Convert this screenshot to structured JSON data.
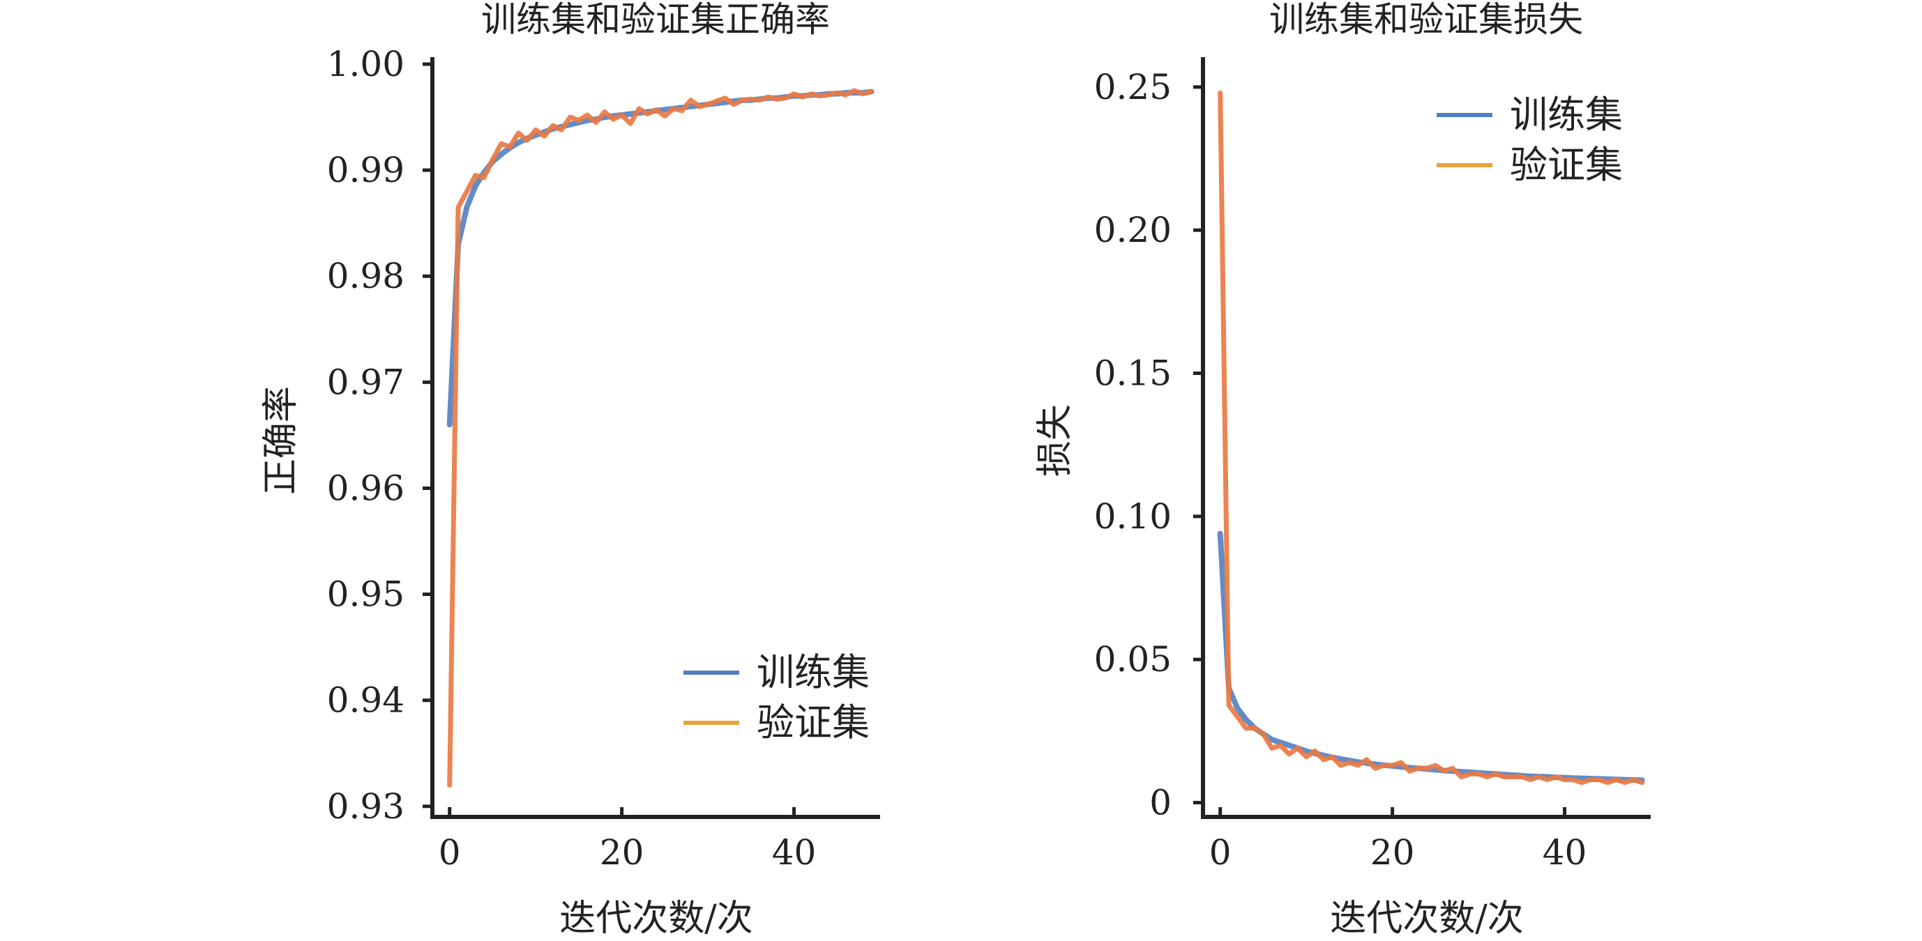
{
  "chart_data": [
    {
      "type": "line",
      "title": "训练集和验证集正确率",
      "xlabel": "迭代次数/次",
      "ylabel": "正确率",
      "xlim": [
        -2,
        50
      ],
      "ylim": [
        0.929,
        1.0
      ],
      "xticks": [
        0,
        20,
        40
      ],
      "xtick_labels": [
        "0",
        "20",
        "40"
      ],
      "yticks": [
        0.93,
        0.94,
        0.95,
        0.96,
        0.97,
        0.98,
        0.99,
        1.0
      ],
      "ytick_labels": [
        "0.93",
        "0.94",
        "0.95",
        "0.96",
        "0.97",
        "0.98",
        "0.99",
        "1.00"
      ],
      "grid": false,
      "legend_position": "bottom-right",
      "x": [
        0,
        1,
        2,
        3,
        4,
        5,
        6,
        7,
        8,
        9,
        10,
        11,
        12,
        13,
        14,
        15,
        16,
        17,
        18,
        19,
        20,
        21,
        22,
        23,
        24,
        25,
        26,
        27,
        28,
        29,
        30,
        31,
        32,
        33,
        34,
        35,
        36,
        37,
        38,
        39,
        40,
        41,
        42,
        43,
        44,
        45,
        46,
        47,
        48,
        49
      ],
      "series": [
        {
          "name": "训练集",
          "color": "#4f7fc0",
          "values": [
            0.966,
            0.983,
            0.9865,
            0.9885,
            0.9898,
            0.9908,
            0.9915,
            0.9921,
            0.9926,
            0.993,
            0.9933,
            0.9936,
            0.9939,
            0.9941,
            0.9943,
            0.9945,
            0.9947,
            0.9948,
            0.995,
            0.9951,
            0.9952,
            0.9953,
            0.9954,
            0.9955,
            0.9956,
            0.9957,
            0.9958,
            0.9959,
            0.996,
            0.9961,
            0.9962,
            0.9963,
            0.9964,
            0.9965,
            0.9966,
            0.9966,
            0.9967,
            0.9968,
            0.9968,
            0.9969,
            0.997,
            0.997,
            0.9971,
            0.9971,
            0.9972,
            0.9972,
            0.9973,
            0.9973,
            0.9973,
            0.9974
          ]
        },
        {
          "name": "验证集",
          "color": "#e8a33a",
          "values": [
            0.932,
            0.9865,
            0.988,
            0.9895,
            0.9893,
            0.991,
            0.9925,
            0.9922,
            0.9935,
            0.9928,
            0.9938,
            0.9932,
            0.9942,
            0.9938,
            0.995,
            0.9947,
            0.9952,
            0.9945,
            0.9955,
            0.9948,
            0.9952,
            0.9944,
            0.9958,
            0.9953,
            0.9957,
            0.9951,
            0.9958,
            0.9956,
            0.9966,
            0.996,
            0.9962,
            0.9965,
            0.9968,
            0.9962,
            0.9966,
            0.9967,
            0.9966,
            0.9969,
            0.9967,
            0.9968,
            0.9972,
            0.9969,
            0.9972,
            0.997,
            0.9971,
            0.9973,
            0.9971,
            0.9975,
            0.9972,
            0.9974
          ]
        }
      ]
    },
    {
      "type": "line",
      "title": "训练集和验证集损失",
      "xlabel": "迭代次数/次",
      "ylabel": "损失",
      "xlim": [
        -2,
        50
      ],
      "ylim": [
        -0.005,
        0.258
      ],
      "xticks": [
        0,
        20,
        40
      ],
      "xtick_labels": [
        "0",
        "20",
        "40"
      ],
      "yticks": [
        0,
        0.05,
        0.1,
        0.15,
        0.2,
        0.25
      ],
      "ytick_labels": [
        "0",
        "0.05",
        "0.10",
        "0.15",
        "0.20",
        "0.25"
      ],
      "grid": false,
      "legend_position": "top-right",
      "x": [
        0,
        1,
        2,
        3,
        4,
        5,
        6,
        7,
        8,
        9,
        10,
        11,
        12,
        13,
        14,
        15,
        16,
        17,
        18,
        19,
        20,
        21,
        22,
        23,
        24,
        25,
        26,
        27,
        28,
        29,
        30,
        31,
        32,
        33,
        34,
        35,
        36,
        37,
        38,
        39,
        40,
        41,
        42,
        43,
        44,
        45,
        46,
        47,
        48,
        49
      ],
      "series": [
        {
          "name": "训练集",
          "color": "#4f7fc0",
          "values": [
            0.094,
            0.04,
            0.033,
            0.029,
            0.026,
            0.024,
            0.022,
            0.021,
            0.02,
            0.019,
            0.018,
            0.0172,
            0.0165,
            0.0158,
            0.0152,
            0.0147,
            0.0142,
            0.0138,
            0.0134,
            0.0131,
            0.0128,
            0.0125,
            0.0122,
            0.012,
            0.0117,
            0.0115,
            0.0112,
            0.011,
            0.0108,
            0.0106,
            0.0104,
            0.0102,
            0.01,
            0.0098,
            0.0096,
            0.0094,
            0.0092,
            0.0091,
            0.009,
            0.0088,
            0.0087,
            0.0086,
            0.0085,
            0.0084,
            0.0083,
            0.0082,
            0.0081,
            0.008,
            0.0079,
            0.0078
          ]
        },
        {
          "name": "验证集",
          "color": "#e8a33a",
          "values": [
            0.248,
            0.034,
            0.03,
            0.026,
            0.026,
            0.024,
            0.019,
            0.02,
            0.017,
            0.019,
            0.016,
            0.018,
            0.015,
            0.016,
            0.013,
            0.014,
            0.013,
            0.015,
            0.012,
            0.013,
            0.013,
            0.014,
            0.011,
            0.012,
            0.012,
            0.013,
            0.011,
            0.012,
            0.009,
            0.01,
            0.01,
            0.009,
            0.01,
            0.009,
            0.009,
            0.009,
            0.008,
            0.009,
            0.008,
            0.009,
            0.008,
            0.008,
            0.007,
            0.008,
            0.008,
            0.007,
            0.008,
            0.007,
            0.008,
            0.007
          ]
        }
      ]
    }
  ]
}
